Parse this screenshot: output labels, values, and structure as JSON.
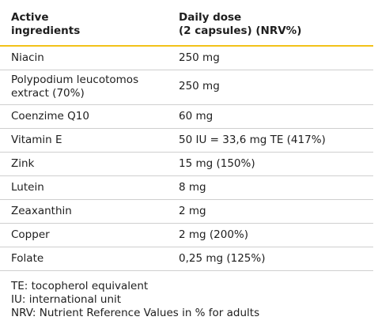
{
  "table": {
    "header": {
      "ingredient": "Active\ningredients",
      "dose": "Daily dose\n(2 capsules) (NRV%)"
    },
    "rows": [
      {
        "ingredient": "Niacin",
        "dose": "250 mg"
      },
      {
        "ingredient": "Polypodium leucotomos extract (70%)",
        "dose": "250 mg"
      },
      {
        "ingredient": "Coenzime Q10",
        "dose": "60 mg"
      },
      {
        "ingredient": "Vitamin E",
        "dose": "50 IU = 33,6 mg TE (417%)"
      },
      {
        "ingredient": "Zink",
        "dose": "15 mg (150%)"
      },
      {
        "ingredient": "Lutein",
        "dose": "8 mg"
      },
      {
        "ingredient": "Zeaxanthin",
        "dose": "2 mg"
      },
      {
        "ingredient": "Copper",
        "dose": "2 mg (200%)"
      },
      {
        "ingredient": "Folate",
        "dose": "0,25 mg (125%)"
      }
    ]
  },
  "notes": [
    "TE: tocopherol equivalent",
    "IU: international unit",
    "NRV: Nutrient Reference Values in % for adults"
  ],
  "colors": {
    "accent_rule": "#f2c21a",
    "row_divider": "#cfcfcf",
    "text": "#1e1e1e"
  }
}
